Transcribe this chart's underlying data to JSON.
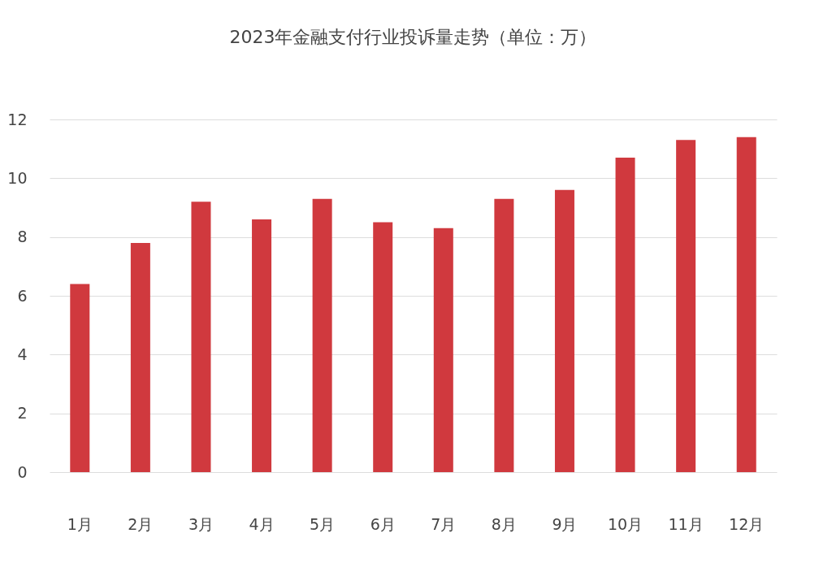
{
  "chart_data": {
    "type": "bar",
    "title": "2023年金融支付行业投诉量走势（单位：万）",
    "categories": [
      "1月",
      "2月",
      "3月",
      "4月",
      "5月",
      "6月",
      "7月",
      "8月",
      "9月",
      "10月",
      "11月",
      "12月"
    ],
    "values": [
      6.4,
      7.8,
      9.2,
      8.6,
      9.3,
      8.5,
      8.3,
      9.3,
      9.6,
      10.7,
      11.3,
      11.4
    ],
    "color": "#d0393e",
    "ylim": [
      0,
      12
    ],
    "yticks": [
      0,
      2,
      4,
      6,
      8,
      10,
      12
    ],
    "grid": "y"
  }
}
